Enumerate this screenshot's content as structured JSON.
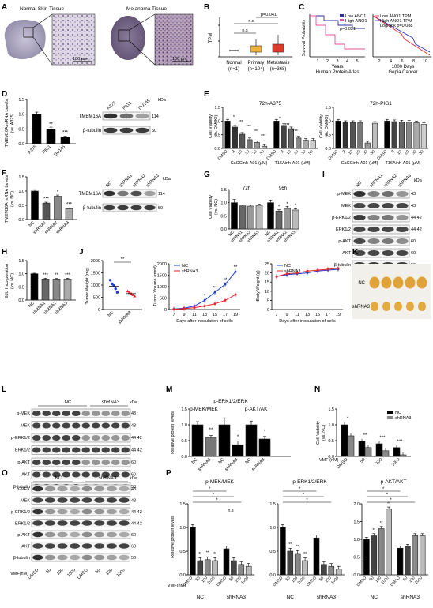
{
  "panels": {
    "A": {
      "label": "A",
      "left_title": "Normal Skin Tissue",
      "right_title": "Melanoma Tissue",
      "scale_bar": "100 μm"
    },
    "B": {
      "label": "B",
      "ylabel": "TPM",
      "ns1": "n.s",
      "ns2": "n.s",
      "p": "p=0.041",
      "groups": [
        {
          "name": "Normal",
          "n": "(n=1)"
        },
        {
          "name": "Primary",
          "n": "(n=104)"
        },
        {
          "name": "Metastasis",
          "n": "(n=368)"
        }
      ]
    },
    "C": {
      "label": "C",
      "ylabel": "Survival Probability",
      "left": {
        "legend_low": "Low ANO1",
        "legend_high": "High ANO1",
        "p": "p=0.021",
        "ticks": [
          "1",
          "2",
          "3",
          "4",
          "5"
        ],
        "xlabel1": "Years",
        "xlabel2": "Human Protein Atlas",
        "low_color": "#2d2d9a",
        "high_color": "#e0559b"
      },
      "right": {
        "legend_low": "Low ANO1 TPM",
        "legend_high": "High ANO1 TPM",
        "p": "Logrank p=0.088",
        "ticks": [
          "2",
          "4",
          "6",
          "8",
          "10"
        ],
        "xlabel1": "1000 Days",
        "xlabel2": "Gepia Cancer",
        "low_color": "#2d2dc8",
        "high_color": "#e03030"
      }
    },
    "D": {
      "label": "D",
      "ylabel1": "TMEM16A mRNA Levels",
      "ylabel2": "(vs. A375)",
      "yticks": [
        "0.0",
        "0.5",
        "1.0",
        "1.5"
      ],
      "bars": [
        {
          "name": "A375",
          "sig": ""
        },
        {
          "name": "PIG1",
          "sig": "**"
        },
        {
          "name": "DU145",
          "sig": "***"
        }
      ],
      "blot": {
        "lanes": [
          "A375",
          "PIG1",
          "DU145"
        ],
        "rows": [
          "TMEM16A",
          "β-tubulin"
        ],
        "kda": [
          "114",
          "50"
        ],
        "kda_label": "kDa"
      }
    },
    "E": {
      "label": "E",
      "ylabel1": "Cell Viability",
      "ylabel2": "(vs. DMSO)",
      "yticks": [
        "0.0",
        "0.5",
        "1.0",
        "1.5"
      ],
      "left_title": "72h-A375",
      "right_title": "72h-PIG1",
      "ticks": [
        "DMSO",
        "3",
        "10",
        "20",
        "30",
        "50",
        "DMSO",
        "3",
        "10",
        "20",
        "30",
        "50"
      ],
      "drug1": "CaCCinh-A01 (μM)",
      "drug2": "T16Ainh-A01 (μM)"
    },
    "F": {
      "label": "F",
      "ylabel1": "TMEM16A mRNA Levels",
      "ylabel2": "(vs. NC)",
      "yticks": [
        "0.0",
        "0.5",
        "1.0",
        "1.5"
      ],
      "bars": [
        {
          "name": "NC",
          "sig": ""
        },
        {
          "name": "shRNA1",
          "sig": "***"
        },
        {
          "name": "shRNA2",
          "sig": "*"
        },
        {
          "name": "shRNA3",
          "sig": "***"
        }
      ],
      "blot": {
        "lanes": [
          "NC",
          "shRNA1",
          "shRNA2",
          "shRNA3"
        ],
        "rows": [
          "TMEM16A",
          "β-tubulin"
        ],
        "kda": [
          "114",
          "50"
        ],
        "kda_label": "kDa"
      }
    },
    "G": {
      "label": "G",
      "ylabel1": "Cell Viability",
      "ylabel2": "(vs. NC)",
      "yticks": [
        "0.0",
        "0.5",
        "1.0",
        "1.5"
      ],
      "time1": "72h",
      "time2": "96h",
      "ticks": [
        "NC",
        "shRNA1",
        "shRNA2",
        "shRNA3",
        "NC",
        "shRNA1",
        "shRNA2",
        "shRNA3"
      ]
    },
    "H": {
      "label": "H",
      "ylabel1": "EdU Incorporation",
      "ylabel2": "(vs. NC)",
      "yticks": [
        "0.0",
        "0.5",
        "1.0",
        "1.5"
      ],
      "bars": [
        {
          "name": "NC",
          "sig": ""
        },
        {
          "name": "shRNA1",
          "sig": "***"
        },
        {
          "name": "shRNA2",
          "sig": "**"
        },
        {
          "name": "shRNA3",
          "sig": "***"
        }
      ]
    },
    "I": {
      "label": "I",
      "lanes": [
        "NC",
        "shRNA1",
        "shRNA2",
        "shRNA3"
      ],
      "kda_label": "kDa",
      "rows": [
        {
          "name": "p-MEK",
          "kda": "43"
        },
        {
          "name": "MEK",
          "kda": "43"
        },
        {
          "name": "p-ERK1/2",
          "kda": "44 42"
        },
        {
          "name": "ERK1/2",
          "kda": "44 42"
        },
        {
          "name": "p-AKT",
          "kda": "60"
        },
        {
          "name": "AKT",
          "kda": "60"
        },
        {
          "name": "β-tubulin",
          "kda": "50"
        }
      ]
    },
    "J": {
      "label": "J",
      "sig": "**",
      "tw": {
        "ylabel": "Tumor Weight (mg)",
        "yticks": [
          "0",
          "500",
          "1000",
          "1500",
          "2000"
        ],
        "groups": [
          "NC",
          "shRNA3"
        ]
      },
      "tv": {
        "ylabel": "Tumor Volume (mm³)",
        "yticks": [
          "0",
          "500",
          "1000",
          "1500",
          "2000"
        ],
        "xticks": [
          "7",
          "9",
          "11",
          "13",
          "15",
          "17",
          "19"
        ],
        "xlabel": "Days after inoculation of cells",
        "legend": [
          "NC",
          "shRNA3"
        ],
        "sigs": [
          "*",
          "**",
          "**",
          "**"
        ]
      },
      "bw": {
        "ylabel": "Body Weight (g)",
        "yticks": [
          "0",
          "5",
          "10",
          "15",
          "20",
          "25"
        ],
        "xticks": [
          "7",
          "9",
          "11",
          "13",
          "15",
          "17",
          "19"
        ],
        "xlabel": "Days after inoculation of cells",
        "legend": [
          "NC",
          "shRNA3"
        ]
      },
      "nc_color": "#1f3ec9",
      "sh_color": "#e5262d"
    },
    "K": {
      "label": "K",
      "row1": "NC",
      "row2": "shRNA3"
    },
    "L": {
      "label": "L",
      "group1": "NC",
      "group2": "shRNA3",
      "kda_label": "kDa",
      "rows": [
        {
          "name": "p-MEK",
          "kda": "43"
        },
        {
          "name": "MEK",
          "kda": "43"
        },
        {
          "name": "p-ERK1/2",
          "kda": "44 42"
        },
        {
          "name": "ERK1/2",
          "kda": "44 42"
        },
        {
          "name": "p-AKT",
          "kda": "60"
        },
        {
          "name": "AKT",
          "kda": "60"
        },
        {
          "name": "β-tubulin",
          "kda": "50"
        }
      ]
    },
    "M": {
      "label": "M",
      "ylabel": "Relative protein levels",
      "yticks": [
        "0.0",
        "0.5",
        "1.0",
        "1.5"
      ],
      "titles": [
        "p-MEK/MEK",
        "p-ERK1/2/ERK",
        "p-AKT/AKT"
      ],
      "ticks": [
        "NC",
        "shRNA3"
      ],
      "sigs": [
        "**",
        "*",
        "*"
      ]
    },
    "N": {
      "label": "N",
      "ylabel1": "Cell Viability",
      "ylabel2": "(vs. NC)",
      "yticks": [
        "0.0",
        "0.5",
        "1.0",
        "1.5"
      ],
      "legend": [
        "NC",
        "shRNA3"
      ],
      "xlabel": "VMF (nM)",
      "ticks": [
        "DMSO",
        "50",
        "100",
        "1000"
      ],
      "sigs": [
        "*",
        "**",
        "***",
        "***"
      ]
    },
    "O": {
      "label": "O",
      "group1": "NC",
      "group2": "shRNA3",
      "kda_label": "kDa",
      "vmf_label": "VMF(nM)",
      "lanes": [
        "DMSO",
        "50",
        "100",
        "1000",
        "DMSO",
        "50",
        "100",
        "1000"
      ],
      "rows": [
        {
          "name": "p-MEK",
          "kda": "43"
        },
        {
          "name": "MEK",
          "kda": "43"
        },
        {
          "name": "p-ERK1/2",
          "kda": "44 42"
        },
        {
          "name": "ERK1/2",
          "kda": "44 42"
        },
        {
          "name": "p-AKT",
          "kda": "60"
        },
        {
          "name": "AKT",
          "kda": "60"
        },
        {
          "name": "β-tubulin",
          "kda": "50"
        }
      ]
    },
    "P": {
      "label": "P",
      "ylabel": "Relative protein levels",
      "yticks": [
        "0.0",
        "0.5",
        "1.0",
        "1.5",
        "2.0"
      ],
      "titles": [
        "p-MEK/MEK",
        "p-ERK1/2/ERK",
        "p-AKT/AKT"
      ],
      "vmf_label": "VMF(nM)",
      "ticks": [
        "DMSO",
        "50",
        "100",
        "1000",
        "DMSO",
        "50",
        "100",
        "1000"
      ],
      "group1": "NC",
      "group2": "shRNA3",
      "ns": "n.s"
    }
  },
  "chart_data": [
    {
      "panel": "D",
      "type": "bar",
      "categories": [
        "A375",
        "PIG1",
        "DU145"
      ],
      "values": [
        1.0,
        0.5,
        0.22
      ],
      "ylim": [
        0,
        1.5
      ]
    },
    {
      "panel": "E-left",
      "type": "bar",
      "categories": [
        "DMSO",
        "3",
        "10",
        "20",
        "30",
        "50",
        "DMSO",
        "3",
        "10",
        "20",
        "30",
        "50"
      ],
      "values": [
        1.0,
        0.78,
        0.52,
        0.32,
        0.22,
        0.08,
        1.0,
        0.84,
        0.72,
        0.38,
        0.3,
        0.3
      ],
      "ylim": [
        0,
        1.5
      ]
    },
    {
      "panel": "E-right",
      "type": "bar",
      "categories": [
        "DMSO",
        "3",
        "10",
        "20",
        "30",
        "50",
        "DMSO",
        "3",
        "10",
        "20",
        "30",
        "50"
      ],
      "values": [
        1.0,
        0.95,
        0.95,
        0.95,
        0.2,
        0.92,
        1.0,
        0.98,
        0.97,
        0.96,
        0.94,
        0.88
      ],
      "ylim": [
        0,
        1.5
      ]
    },
    {
      "panel": "F",
      "type": "bar",
      "categories": [
        "NC",
        "shRNA1",
        "shRNA2",
        "shRNA3"
      ],
      "values": [
        1.0,
        0.58,
        0.82,
        0.38
      ],
      "ylim": [
        0,
        1.5
      ]
    },
    {
      "panel": "G",
      "type": "bar",
      "categories": [
        "NC",
        "shRNA1",
        "shRNA2",
        "shRNA3",
        "NC",
        "shRNA1",
        "shRNA2",
        "shRNA3"
      ],
      "values": [
        1.0,
        0.88,
        0.87,
        0.9,
        1.0,
        0.68,
        0.78,
        0.72
      ],
      "ylim": [
        0,
        1.5
      ]
    },
    {
      "panel": "H",
      "type": "bar",
      "categories": [
        "NC",
        "shRNA1",
        "shRNA2",
        "shRNA3"
      ],
      "values": [
        1.0,
        0.8,
        0.8,
        0.8
      ],
      "ylim": [
        0,
        1.5
      ]
    },
    {
      "panel": "J-weight",
      "type": "scatter",
      "series": [
        {
          "name": "NC",
          "values": [
            1200,
            1050,
            980,
            850,
            700
          ]
        },
        {
          "name": "shRNA3",
          "values": [
            750,
            700,
            650,
            600,
            550
          ]
        }
      ],
      "ylim": [
        0,
        2000
      ]
    },
    {
      "panel": "J-volume",
      "type": "line",
      "x": [
        7,
        9,
        11,
        13,
        15,
        17,
        19
      ],
      "series": [
        {
          "name": "NC",
          "values": [
            20,
            60,
            150,
            400,
            750,
            1100,
            1650
          ]
        },
        {
          "name": "shRNA3",
          "values": [
            15,
            40,
            80,
            150,
            250,
            400,
            650
          ]
        }
      ],
      "ylim": [
        0,
        2000
      ]
    },
    {
      "panel": "J-body",
      "type": "line",
      "x": [
        7,
        9,
        11,
        13,
        15,
        17,
        19
      ],
      "series": [
        {
          "name": "NC",
          "values": [
            18,
            19,
            19.5,
            20,
            21,
            21.5,
            22
          ]
        },
        {
          "name": "shRNA3",
          "values": [
            18,
            19.5,
            20,
            21,
            21.5,
            22,
            22.5
          ]
        }
      ],
      "ylim": [
        0,
        25
      ]
    },
    {
      "panel": "M",
      "type": "bar",
      "categories": [
        "NC",
        "shRNA3",
        "NC",
        "shRNA3",
        "NC",
        "shRNA3"
      ],
      "values": [
        1.0,
        0.6,
        1.0,
        0.37,
        1.0,
        0.55
      ],
      "ylim": [
        0,
        1.5
      ]
    },
    {
      "panel": "N",
      "type": "bar",
      "categories": [
        "DMSO",
        "50",
        "100",
        "1000"
      ],
      "series": [
        {
          "name": "NC",
          "values": [
            1.0,
            0.48,
            0.4,
            0.28
          ]
        },
        {
          "name": "shRNA3",
          "values": [
            0.65,
            0.28,
            0.18,
            0.05
          ]
        }
      ],
      "ylim": [
        0,
        1.5
      ]
    },
    {
      "panel": "P-1",
      "type": "bar",
      "categories": [
        "DMSO",
        "50",
        "100",
        "1000",
        "DMSO",
        "50",
        "100",
        "1000"
      ],
      "values": [
        1.0,
        0.3,
        0.32,
        0.3,
        0.55,
        0.3,
        0.22,
        0.18
      ],
      "ylim": [
        0,
        1.5
      ]
    },
    {
      "panel": "P-2",
      "type": "bar",
      "categories": [
        "DMSO",
        "50",
        "100",
        "1000",
        "DMSO",
        "50",
        "100",
        "1000"
      ],
      "values": [
        1.0,
        0.5,
        0.45,
        0.3,
        0.78,
        0.22,
        0.18,
        0.12
      ],
      "ylim": [
        0,
        1.5
      ]
    },
    {
      "panel": "P-3",
      "type": "bar",
      "categories": [
        "DMSO",
        "50",
        "100",
        "1000",
        "DMSO",
        "50",
        "100",
        "1000"
      ],
      "values": [
        1.0,
        1.1,
        1.3,
        1.85,
        0.75,
        0.8,
        1.1,
        1.1
      ],
      "ylim": [
        0,
        2.0
      ]
    }
  ]
}
